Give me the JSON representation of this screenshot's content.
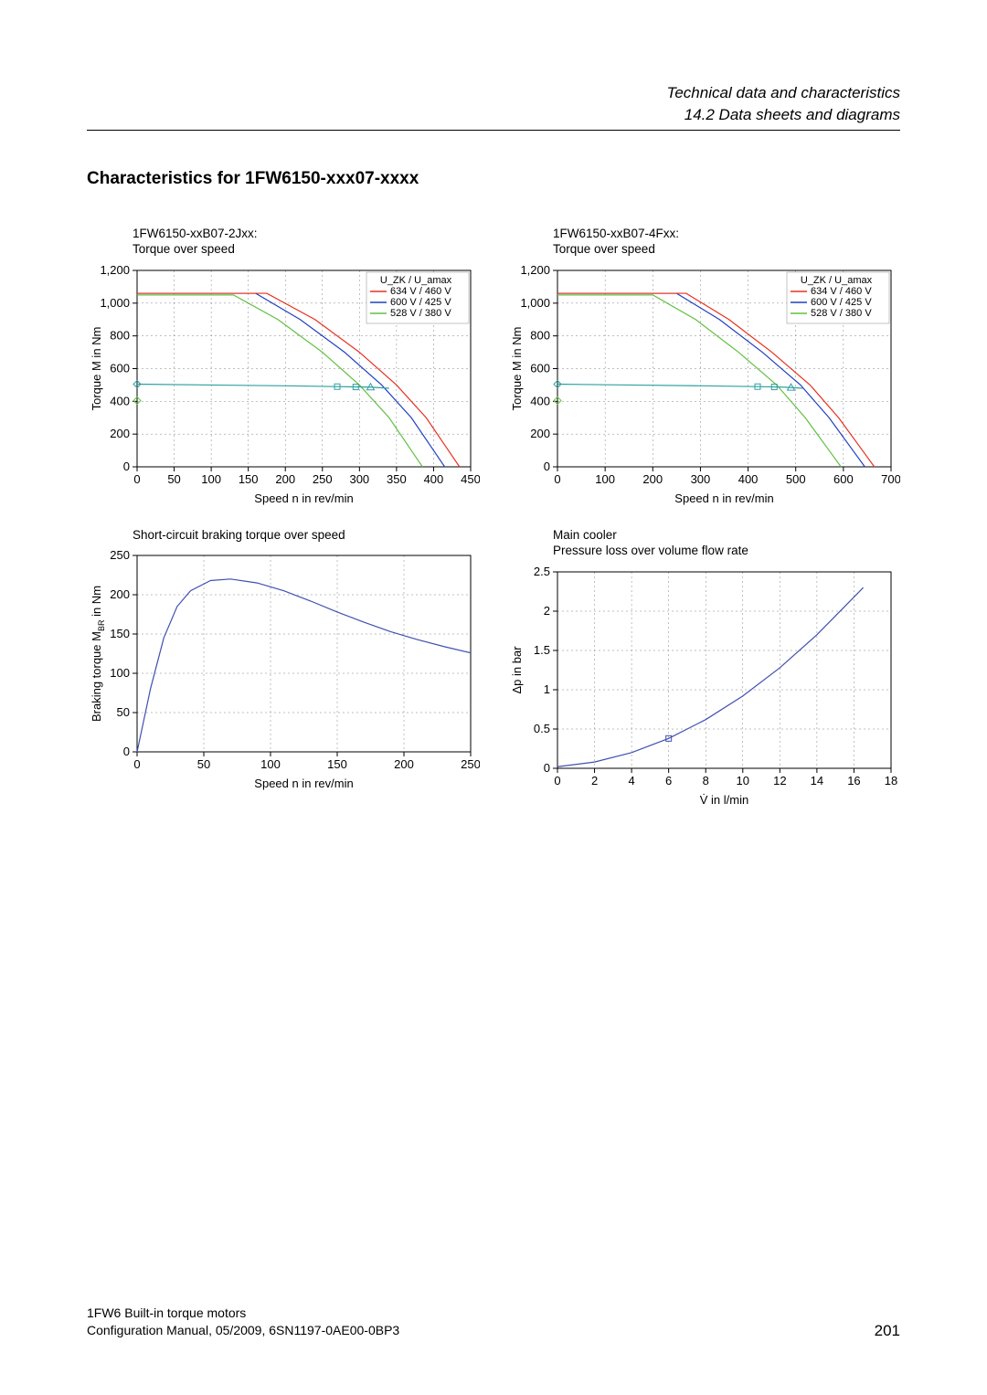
{
  "header": {
    "line1": "Technical data and characteristics",
    "line2": "14.2 Data sheets and diagrams"
  },
  "title": "Characteristics for 1FW6150-xxx07-xxxx",
  "chart1": {
    "title_line1": "1FW6150-xxB07-2Jxx:",
    "title_line2": "Torque over speed",
    "xlabel": "Speed n in rev/min",
    "ylabel": "Torque M in Nm",
    "xlim": [
      0,
      450
    ],
    "xtick_step": 50,
    "ylim": [
      0,
      1200
    ],
    "ytick_step": 200,
    "legend_title": "U_ZK / U_amax",
    "legend": [
      {
        "label": "634 V / 460 V",
        "color": "#e83020"
      },
      {
        "label": "600 V / 425 V",
        "color": "#2040c0"
      },
      {
        "label": "528 V / 380 V",
        "color": "#60c040"
      }
    ],
    "series": {
      "red": [
        [
          0,
          1060
        ],
        [
          175,
          1060
        ],
        [
          240,
          900
        ],
        [
          300,
          700
        ],
        [
          350,
          500
        ],
        [
          390,
          300
        ],
        [
          420,
          100
        ],
        [
          435,
          0
        ]
      ],
      "blue": [
        [
          0,
          1060
        ],
        [
          160,
          1060
        ],
        [
          220,
          900
        ],
        [
          280,
          700
        ],
        [
          330,
          500
        ],
        [
          370,
          300
        ],
        [
          400,
          100
        ],
        [
          415,
          0
        ]
      ],
      "green": [
        [
          0,
          1050
        ],
        [
          130,
          1050
        ],
        [
          190,
          900
        ],
        [
          250,
          700
        ],
        [
          300,
          500
        ],
        [
          340,
          300
        ],
        [
          370,
          100
        ],
        [
          385,
          0
        ]
      ],
      "teal": [
        [
          0,
          505
        ],
        [
          100,
          500
        ],
        [
          200,
          495
        ],
        [
          270,
          490
        ],
        [
          315,
          487
        ],
        [
          340,
          480
        ]
      ],
      "teal_markers": [
        [
          270,
          490,
          "square"
        ],
        [
          295,
          488,
          "square"
        ],
        [
          315,
          487,
          "triangle"
        ]
      ],
      "edge_markers": [
        [
          0,
          505,
          "diamond",
          "#30a0a0"
        ],
        [
          0,
          405,
          "diamond",
          "#60c040"
        ]
      ]
    },
    "colors": {
      "red": "#e83020",
      "blue": "#2040c0",
      "green": "#60c040",
      "teal": "#30a0a0",
      "grid": "#808080",
      "axis": "#000000",
      "bg": "#ffffff"
    },
    "line_width": 1.2,
    "font_size": 13
  },
  "chart2": {
    "title_line1": "1FW6150-xxB07-4Fxx:",
    "title_line2": "Torque over speed",
    "xlabel": "Speed n in rev/min",
    "ylabel": "Torque M in Nm",
    "xlim": [
      0,
      700
    ],
    "xtick_step": 100,
    "ylim": [
      0,
      1200
    ],
    "ytick_step": 200,
    "legend_title": "U_ZK / U_amax",
    "legend": [
      {
        "label": "634 V / 460 V",
        "color": "#e83020"
      },
      {
        "label": "600 V / 425 V",
        "color": "#2040c0"
      },
      {
        "label": "528 V / 380 V",
        "color": "#60c040"
      }
    ],
    "series": {
      "red": [
        [
          0,
          1060
        ],
        [
          270,
          1060
        ],
        [
          360,
          900
        ],
        [
          450,
          700
        ],
        [
          530,
          500
        ],
        [
          590,
          300
        ],
        [
          640,
          100
        ],
        [
          665,
          0
        ]
      ],
      "blue": [
        [
          0,
          1060
        ],
        [
          250,
          1060
        ],
        [
          340,
          900
        ],
        [
          430,
          700
        ],
        [
          510,
          500
        ],
        [
          570,
          300
        ],
        [
          620,
          100
        ],
        [
          645,
          0
        ]
      ],
      "green": [
        [
          0,
          1050
        ],
        [
          200,
          1050
        ],
        [
          290,
          900
        ],
        [
          380,
          700
        ],
        [
          460,
          500
        ],
        [
          520,
          300
        ],
        [
          570,
          100
        ],
        [
          595,
          0
        ]
      ],
      "teal": [
        [
          0,
          505
        ],
        [
          150,
          500
        ],
        [
          300,
          495
        ],
        [
          420,
          490
        ],
        [
          475,
          487
        ],
        [
          515,
          480
        ]
      ],
      "teal_markers": [
        [
          420,
          490,
          "square"
        ],
        [
          455,
          488,
          "square"
        ],
        [
          490,
          485,
          "triangle"
        ]
      ],
      "edge_markers": [
        [
          0,
          505,
          "diamond",
          "#30a0a0"
        ],
        [
          0,
          405,
          "diamond",
          "#60c040"
        ]
      ]
    },
    "colors": {
      "red": "#e83020",
      "blue": "#2040c0",
      "green": "#60c040",
      "teal": "#30a0a0",
      "grid": "#808080",
      "axis": "#000000",
      "bg": "#ffffff"
    },
    "line_width": 1.2,
    "font_size": 13
  },
  "chart3": {
    "title_line1": "Short-circuit braking torque over speed",
    "title_line2": "",
    "xlabel": "Speed n in rev/min",
    "ylabel": "Braking torque M_BR in Nm",
    "xlim": [
      0,
      250
    ],
    "xtick_step": 50,
    "ylim": [
      0,
      250
    ],
    "ytick_step": 50,
    "series": {
      "main": [
        [
          0,
          0
        ],
        [
          10,
          80
        ],
        [
          20,
          145
        ],
        [
          30,
          185
        ],
        [
          40,
          205
        ],
        [
          55,
          218
        ],
        [
          70,
          220
        ],
        [
          90,
          215
        ],
        [
          110,
          205
        ],
        [
          130,
          192
        ],
        [
          150,
          178
        ],
        [
          170,
          165
        ],
        [
          190,
          153
        ],
        [
          210,
          143
        ],
        [
          230,
          134
        ],
        [
          250,
          126
        ]
      ]
    },
    "colors": {
      "main": "#4050b0",
      "grid": "#808080",
      "axis": "#000000",
      "bg": "#ffffff"
    },
    "line_width": 1.2,
    "font_size": 13
  },
  "chart4": {
    "title_line1": "Main cooler",
    "title_line2": "Pressure loss over volume flow rate",
    "xlabel": "V̇ in l/min",
    "ylabel": "Δp in bar",
    "xlim": [
      0,
      18
    ],
    "xtick_step": 2,
    "ylim": [
      0,
      2.5
    ],
    "ytick_step": 0.5,
    "series": {
      "main": [
        [
          0,
          0.02
        ],
        [
          2,
          0.08
        ],
        [
          4,
          0.2
        ],
        [
          6,
          0.38
        ],
        [
          8,
          0.62
        ],
        [
          10,
          0.92
        ],
        [
          12,
          1.28
        ],
        [
          14,
          1.7
        ],
        [
          16,
          2.18
        ],
        [
          16.5,
          2.3
        ]
      ],
      "marker": [
        6,
        0.38
      ]
    },
    "colors": {
      "main": "#4050b0",
      "grid": "#808080",
      "axis": "#000000",
      "bg": "#ffffff"
    },
    "line_width": 1.2,
    "font_size": 13
  },
  "footer": {
    "line1": "1FW6 Built-in torque motors",
    "line2": "Configuration Manual, 05/2009, 6SN1197-0AE00-0BP3",
    "page": "201"
  }
}
